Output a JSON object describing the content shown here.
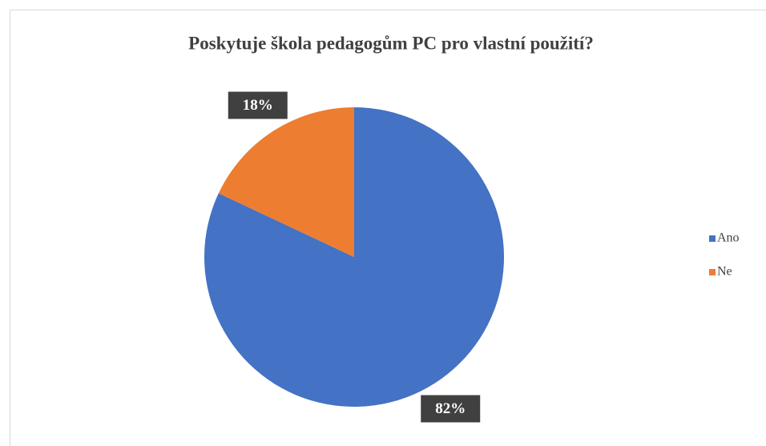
{
  "chart_data": {
    "type": "pie",
    "title": "Poskytuje škola pedagogům  PC pro vlastní použití?",
    "categories": [
      "Ano",
      "Ne"
    ],
    "values": [
      82,
      18
    ],
    "value_labels": [
      "82%",
      "18%"
    ],
    "colors": [
      "#4472c4",
      "#ed7d31"
    ],
    "legend": "right"
  }
}
